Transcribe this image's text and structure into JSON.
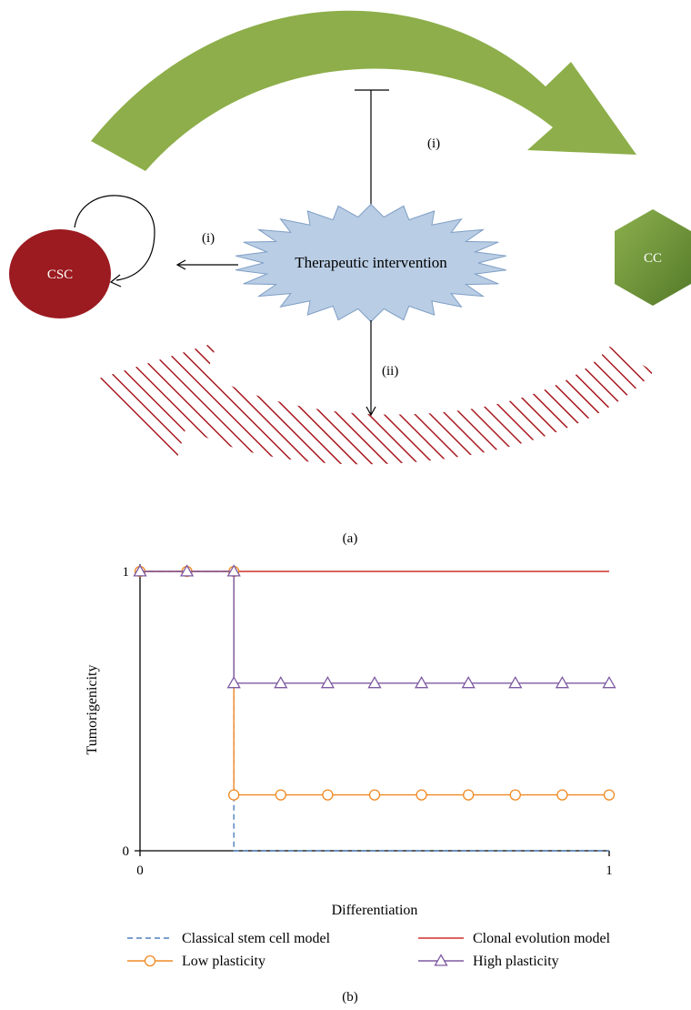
{
  "panel_a": {
    "label": "(a)",
    "csc_label": "CSC",
    "cc_label": "CC",
    "intervention_label": "Therapeutic intervention",
    "label_i_top": "(i)",
    "label_i_left": "(i)",
    "label_ii": "(ii)",
    "colors": {
      "green_arrow": "#8dae4a",
      "hatch_arrow": "#a8191f",
      "csc": "#9b1b20",
      "cc": "#6b8f35",
      "intervention": "#b9cde4",
      "intervention_stroke": "#7f9fc6"
    }
  },
  "panel_b": {
    "label": "(b)",
    "chart_data": {
      "type": "line",
      "xlabel": "Differentiation",
      "ylabel": "Tumorigenicity",
      "xlim": [
        0,
        1
      ],
      "ylim": [
        0,
        1
      ],
      "x_ticks": [
        "0",
        "1"
      ],
      "y_ticks": [
        "0",
        "1"
      ],
      "legend_placement": "bottom",
      "series": [
        {
          "name": "Classical stem cell model",
          "color": "#4f81bd",
          "style": "dashed",
          "marker": "none",
          "points": [
            [
              0,
              1
            ],
            [
              0.2,
              1
            ],
            [
              0.2,
              0
            ],
            [
              1,
              0
            ]
          ]
        },
        {
          "name": "Clonal evolution model",
          "color": "#d0312d",
          "style": "solid",
          "marker": "none",
          "points": [
            [
              0,
              1
            ],
            [
              1,
              1
            ]
          ]
        },
        {
          "name": "Low plasticity",
          "color": "#f08a24",
          "style": "solid",
          "marker": "circle",
          "points": [
            [
              0,
              1
            ],
            [
              0.2,
              1
            ],
            [
              0.2,
              0.2
            ],
            [
              1,
              0.2
            ]
          ],
          "marker_points": [
            [
              0,
              1
            ],
            [
              0.1,
              1
            ],
            [
              0.2,
              1
            ],
            [
              0.2,
              0.2
            ],
            [
              0.3,
              0.2
            ],
            [
              0.4,
              0.2
            ],
            [
              0.5,
              0.2
            ],
            [
              0.6,
              0.2
            ],
            [
              0.7,
              0.2
            ],
            [
              0.8,
              0.2
            ],
            [
              0.9,
              0.2
            ],
            [
              1,
              0.2
            ]
          ]
        },
        {
          "name": "High plasticity",
          "color": "#7e5aa2",
          "style": "solid",
          "marker": "triangle",
          "points": [
            [
              0,
              1
            ],
            [
              0.2,
              1
            ],
            [
              0.2,
              0.6
            ],
            [
              1,
              0.6
            ]
          ],
          "marker_points": [
            [
              0,
              1
            ],
            [
              0.1,
              1
            ],
            [
              0.2,
              1
            ],
            [
              0.2,
              0.6
            ],
            [
              0.3,
              0.6
            ],
            [
              0.4,
              0.6
            ],
            [
              0.5,
              0.6
            ],
            [
              0.6,
              0.6
            ],
            [
              0.7,
              0.6
            ],
            [
              0.8,
              0.6
            ],
            [
              0.9,
              0.6
            ],
            [
              1,
              0.6
            ]
          ]
        }
      ]
    }
  }
}
